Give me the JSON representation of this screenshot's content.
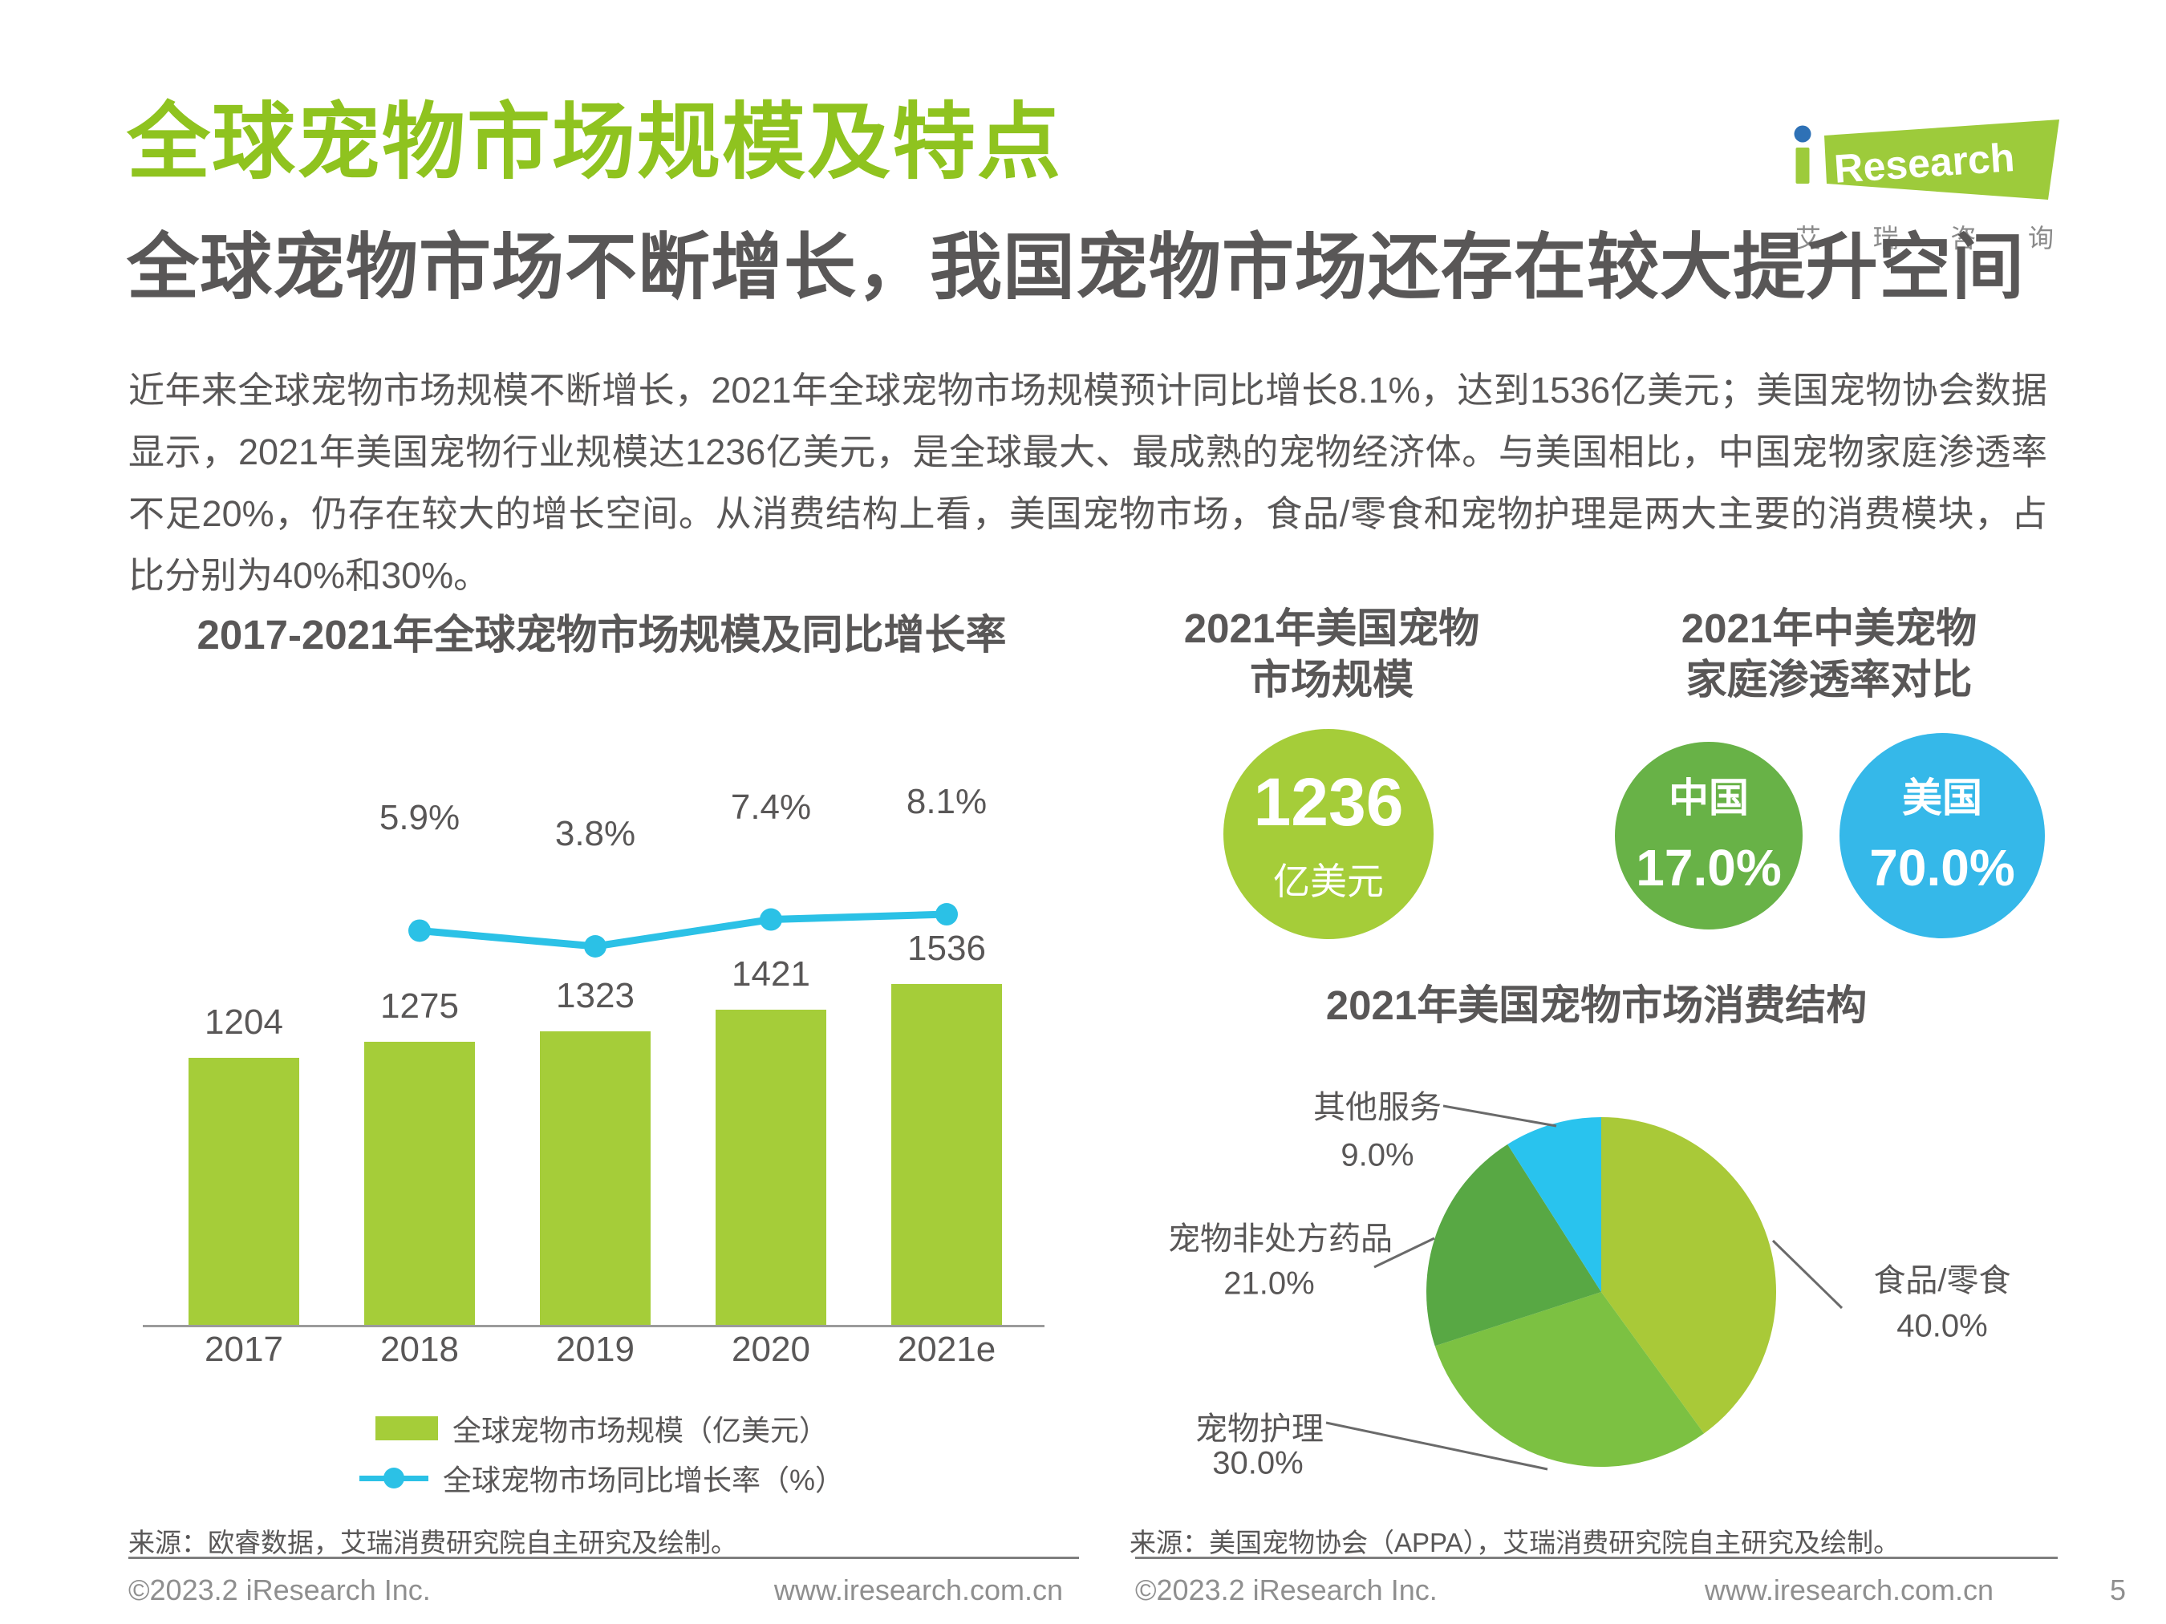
{
  "page": {
    "title": "全球宠物市场规模及特点",
    "subtitle": "全球宠物市场不断增长，我国宠物市场还存在较大提升空间",
    "paragraph": "近年来全球宠物市场规模不断增长，2021年全球宠物市场规模预计同比增长8.1%，达到1536亿美元；美国宠物协会数据显示，2021年美国宠物行业规模达1236亿美元，是全球最大、最成熟的宠物经济体。与美国相比，中国宠物家庭渗透率不足20%，仍存在较大的增长空间。从消费结构上看，美国宠物市场，食品/零食和宠物护理是两大主要的消费模块，占比分别为40%和30%。",
    "page_number": "5"
  },
  "logo": {
    "brand": "Research",
    "cn": [
      "艾",
      "瑞",
      "咨",
      "询"
    ],
    "green": "#9dcb3b",
    "blue": "#2e71b6"
  },
  "sources": {
    "left": "来源：欧睿数据，艾瑞消费研究院自主研究及绘制。",
    "right": "来源：美国宠物协会（APPA），艾瑞消费研究院自主研究及绘制。"
  },
  "footer": {
    "left_copyright": "©2023.2 iResearch Inc.",
    "left_site": "www.iresearch.com.cn",
    "right_copyright": "©2023.2 iResearch Inc.",
    "right_site": "www.iresearch.com.cn"
  },
  "big_number": {
    "heading_lines": [
      "2021年美国宠物",
      "市场规模"
    ],
    "value": "1236",
    "unit": "亿美元",
    "color": "#a5cd39"
  },
  "comparison": {
    "heading_lines": [
      "2021年中美宠物",
      "家庭渗透率对比"
    ],
    "items": [
      {
        "label": "中国",
        "value": "17.0%",
        "color": "#68b247"
      },
      {
        "label": "美国",
        "value": "70.0%",
        "color": "#35b8e9"
      }
    ]
  },
  "chart_data": [
    {
      "type": "bar+line",
      "title": "2017-2021年全球宠物市场规模及同比增长率",
      "categories": [
        "2017",
        "2018",
        "2019",
        "2020",
        "2021e"
      ],
      "series": [
        {
          "name": "全球宠物市场规模（亿美元）",
          "type": "bar",
          "values": [
            1204,
            1275,
            1323,
            1421,
            1536
          ],
          "color": "#a5cd39"
        },
        {
          "name": "全球宠物市场同比增长率（%）",
          "type": "line",
          "values": [
            null,
            5.9,
            3.8,
            7.4,
            8.1
          ],
          "labels": [
            "",
            "5.9%",
            "3.8%",
            "7.4%",
            "8.1%"
          ],
          "color": "#2bc1e6"
        }
      ],
      "ylabel": "亿美元",
      "grid": false,
      "legend_position": "bottom"
    },
    {
      "type": "pie",
      "title": "2021年美国宠物市场消费结构",
      "slices": [
        {
          "label": "食品/零食",
          "pct_label": "40.0%",
          "value": 40,
          "color": "#a9c938"
        },
        {
          "label": "宠物护理",
          "pct_label": "30.0%",
          "value": 30,
          "color": "#7cc142"
        },
        {
          "label": "宠物非处方药品",
          "pct_label": "21.0%",
          "value": 21,
          "color": "#58a844"
        },
        {
          "label": "其他服务",
          "pct_label": "9.0%",
          "value": 9,
          "color": "#29c3ee"
        }
      ],
      "start_angle_deg_from_top": 0,
      "direction": "clockwise"
    }
  ]
}
